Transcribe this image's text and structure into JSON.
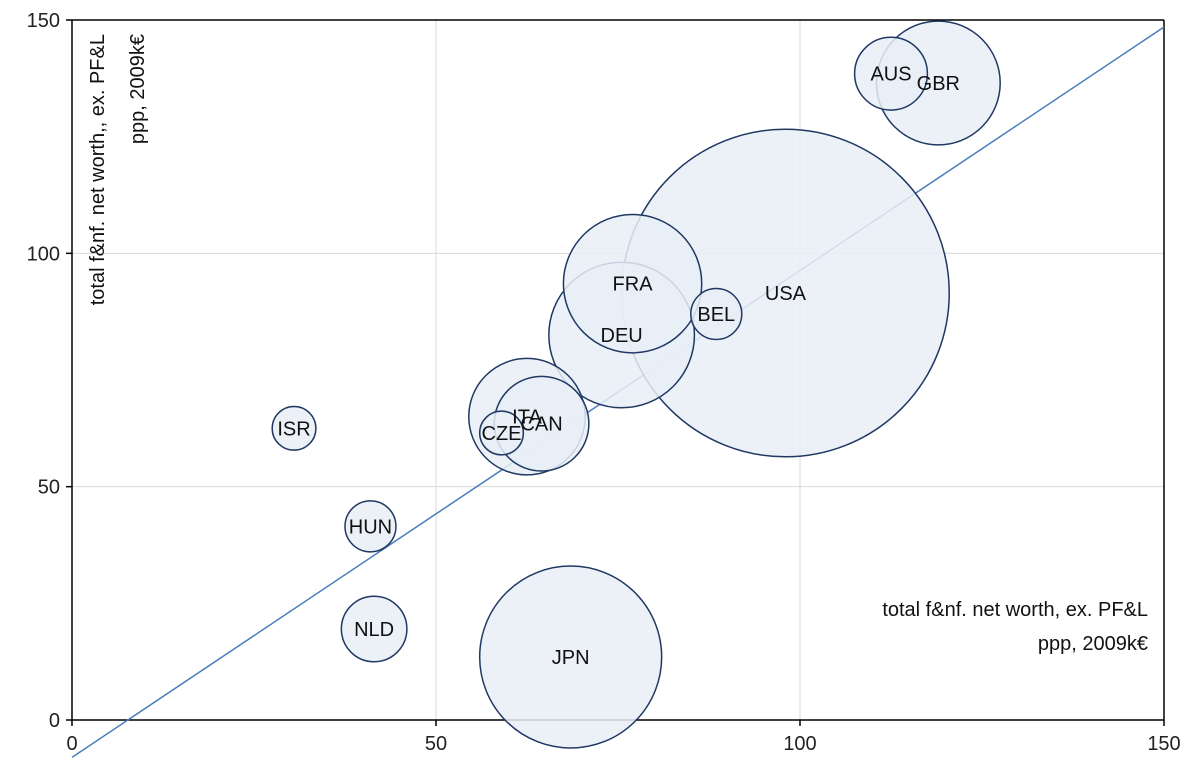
{
  "chart_data": {
    "type": "scatter",
    "subtype": "bubble",
    "xlabel": [
      "total f&nf. net worth, ex. PF&L",
      "ppp, 2009k€"
    ],
    "ylabel": [
      "total f&nf. net worth,, ex. PF&L",
      "ppp, 2009k€"
    ],
    "xlim": [
      0,
      150
    ],
    "ylim": [
      0,
      150
    ],
    "xticks": [
      0,
      50,
      100,
      150
    ],
    "yticks": [
      0,
      50,
      100,
      150
    ],
    "x_tick_labels": [
      "0",
      "50",
      "100",
      "150"
    ],
    "y_tick_labels": [
      "0",
      "50",
      "100",
      "150"
    ],
    "grid": true,
    "legend": "none",
    "colors": {
      "bubble_fill": "#e9eef6",
      "bubble_stroke": "#1f3864",
      "trend_line": "#4a7ebb",
      "grid": "#d9d9d9",
      "axis": "#000000"
    },
    "points": [
      {
        "label": "AUS",
        "x": 112.5,
        "y": 138.5,
        "r": 5
      },
      {
        "label": "GBR",
        "x": 119,
        "y": 136.5,
        "r": 8.5
      },
      {
        "label": "FRA",
        "x": 77,
        "y": 93.5,
        "r": 9.5
      },
      {
        "label": "USA",
        "x": 98,
        "y": 91.5,
        "r": 22.5
      },
      {
        "label": "BEL",
        "x": 88.5,
        "y": 87,
        "r": 3.5
      },
      {
        "label": "DEU",
        "x": 75.5,
        "y": 82.5,
        "r": 10
      },
      {
        "label": "ITA",
        "x": 62.5,
        "y": 65,
        "r": 8
      },
      {
        "label": "CAN",
        "x": 64.5,
        "y": 63.5,
        "r": 6.5
      },
      {
        "label": "CZE",
        "x": 59,
        "y": 61.5,
        "r": 3
      },
      {
        "label": "ISR",
        "x": 30.5,
        "y": 62.5,
        "r": 3
      },
      {
        "label": "HUN",
        "x": 41,
        "y": 41.5,
        "r": 3.5
      },
      {
        "label": "NLD",
        "x": 41.5,
        "y": 19.5,
        "r": 4.5
      },
      {
        "label": "JPN",
        "x": 68.5,
        "y": 13.5,
        "r": 12.5
      }
    ],
    "trend_line": {
      "x": [
        0,
        150
      ],
      "y": [
        -8,
        148.5
      ]
    }
  }
}
